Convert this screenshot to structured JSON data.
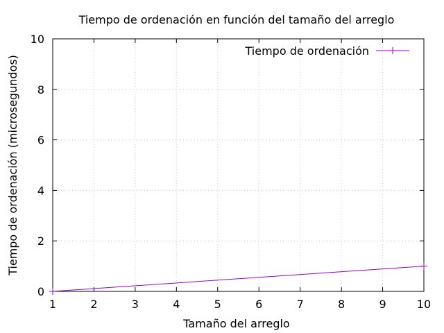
{
  "chart_data": {
    "type": "line",
    "title": "Tiempo de ordenación en función del tamaño del arreglo",
    "xlabel": "Tamaño del arreglo",
    "ylabel": "Tiempo de ordenación (microsegundos)",
    "xlim": [
      1,
      10
    ],
    "ylim": [
      0,
      10
    ],
    "xticks": [
      1,
      2,
      3,
      4,
      5,
      6,
      7,
      8,
      9,
      10
    ],
    "yticks": [
      0,
      2,
      4,
      6,
      8,
      10
    ],
    "grid": true,
    "legend_position": "top-right",
    "series": [
      {
        "name": "Tiempo de ordenación",
        "color": "#9400d3",
        "marker": "plus",
        "x": [
          1,
          10
        ],
        "y": [
          0,
          1
        ]
      }
    ]
  }
}
